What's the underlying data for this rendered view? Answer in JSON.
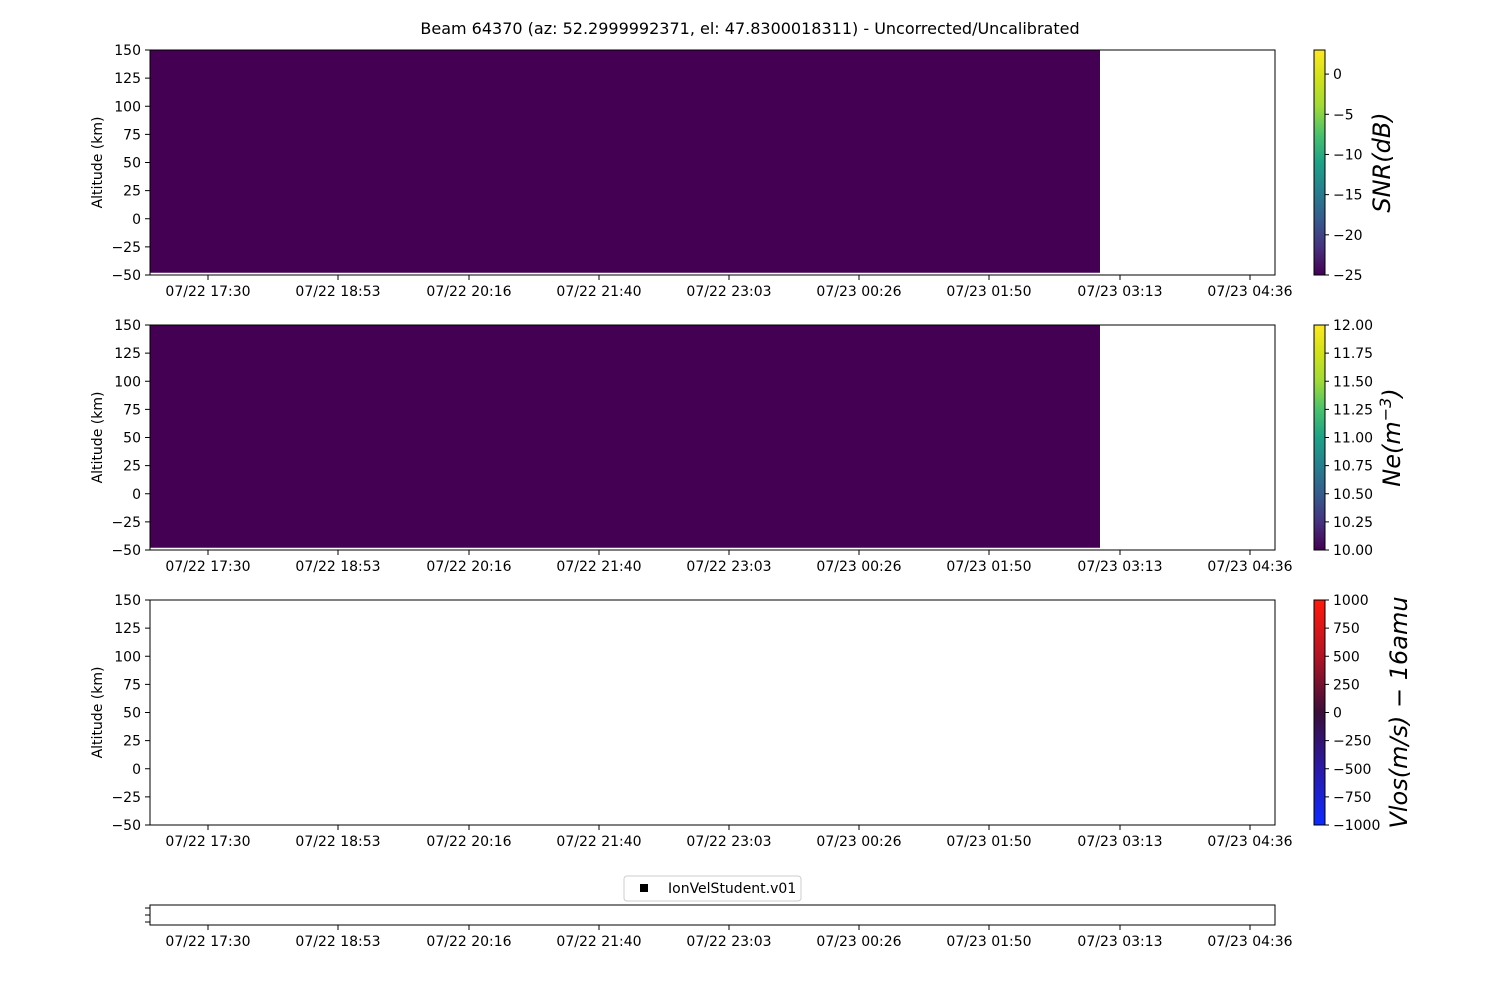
{
  "title": "Beam 64370 (az: 52.2999992371, el: 47.8300018311) - Uncorrected/Uncalibrated",
  "x_tick_labels": [
    "07/22 17:30",
    "07/22 18:53",
    "07/22 20:16",
    "07/22 21:40",
    "07/22 23:03",
    "07/23 00:26",
    "07/23 01:50",
    "07/23 03:13",
    "07/23 04:36"
  ],
  "chart_data": [
    {
      "type": "heatmap",
      "ylabel": "Altitude (km)",
      "ylim": [
        -50,
        150
      ],
      "y_ticks": [
        -50,
        -25,
        0,
        25,
        50,
        75,
        100,
        125,
        150
      ],
      "data_extent": {
        "x_end": "07/23 02:53",
        "y_min": -48,
        "y_max": 150
      },
      "fill_value": -25,
      "fill_color": "#440154",
      "colorbar": {
        "label": "SNR(dB)",
        "colormap": "viridis",
        "range": [
          -25,
          3
        ],
        "ticks": [
          -25,
          -20,
          -15,
          -10,
          -5,
          0
        ]
      }
    },
    {
      "type": "heatmap",
      "ylabel": "Altitude (km)",
      "ylim": [
        -50,
        150
      ],
      "y_ticks": [
        -50,
        -25,
        0,
        25,
        50,
        75,
        100,
        125,
        150
      ],
      "data_extent": {
        "x_end": "07/23 02:53",
        "y_min": -48,
        "y_max": 150
      },
      "fill_value": 10.0,
      "fill_color": "#440154",
      "colorbar": {
        "label": "Ne(m^-3)",
        "colormap": "viridis",
        "range": [
          10.0,
          12.0
        ],
        "ticks": [
          "10.00",
          "10.25",
          "10.50",
          "10.75",
          "11.00",
          "11.25",
          "11.50",
          "11.75",
          "12.00"
        ]
      }
    },
    {
      "type": "heatmap",
      "ylabel": "Altitude (km)",
      "ylim": [
        -50,
        150
      ],
      "y_ticks": [
        -50,
        -25,
        0,
        25,
        50,
        75,
        100,
        125,
        150
      ],
      "empty": true,
      "colorbar": {
        "label": "Vlos(m/s) − 16amu",
        "colormap": "blue-red",
        "range": [
          -1000,
          1000
        ],
        "ticks": [
          -1000,
          -750,
          -500,
          -250,
          0,
          250,
          500,
          750,
          1000
        ]
      }
    },
    {
      "type": "scatter",
      "legend": {
        "label": "IonVelStudent.v01",
        "marker": "square",
        "color": "#000000",
        "placement": "upper-center"
      },
      "series": []
    }
  ]
}
